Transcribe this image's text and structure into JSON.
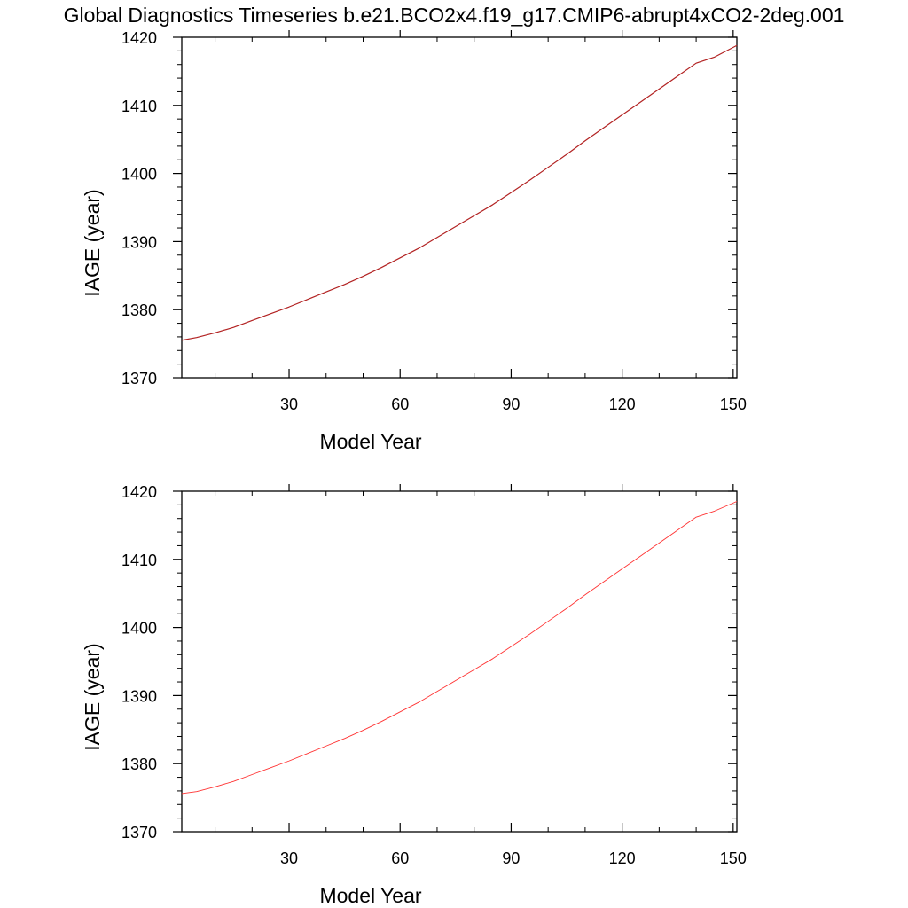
{
  "page": {
    "title": "Global Diagnostics Timeseries b.e21.BCO2x4.f19_g17.CMIP6-abrupt4xCO2-2deg.001"
  },
  "colors": {
    "top_line": "#b22222",
    "bottom_line": "#ff3333",
    "axis": "#000000"
  },
  "chart_data": [
    {
      "type": "line",
      "xlabel": "Model Year",
      "ylabel": "IAGE (year)",
      "xlim": [
        1,
        151
      ],
      "ylim": [
        1370,
        1420
      ],
      "xticks": [
        30,
        60,
        90,
        120,
        150
      ],
      "yticks": [
        1370,
        1380,
        1390,
        1400,
        1410,
        1420
      ],
      "grid": false,
      "series": [
        {
          "x": [
            1,
            5,
            10,
            15,
            20,
            25,
            30,
            35,
            40,
            45,
            50,
            55,
            60,
            65,
            70,
            75,
            80,
            85,
            90,
            95,
            100,
            105,
            110,
            115,
            120,
            125,
            130,
            135,
            140,
            145,
            151
          ],
          "values": [
            1375.5,
            1375.9,
            1376.6,
            1377.4,
            1378.4,
            1379.4,
            1380.4,
            1381.5,
            1382.6,
            1383.7,
            1384.9,
            1386.2,
            1387.6,
            1389.0,
            1390.6,
            1392.2,
            1393.8,
            1395.4,
            1397.2,
            1399.0,
            1400.9,
            1402.8,
            1404.8,
            1406.7,
            1408.6,
            1410.5,
            1412.4,
            1414.3,
            1416.2,
            1417.1,
            1418.8
          ]
        }
      ]
    },
    {
      "type": "line",
      "xlabel": "Model Year",
      "ylabel": "IAGE (year)",
      "xlim": [
        1,
        151
      ],
      "ylim": [
        1370,
        1420
      ],
      "xticks": [
        30,
        60,
        90,
        120,
        150
      ],
      "yticks": [
        1370,
        1380,
        1390,
        1400,
        1410,
        1420
      ],
      "grid": false,
      "series": [
        {
          "x": [
            1,
            5,
            10,
            15,
            20,
            25,
            30,
            35,
            40,
            45,
            50,
            55,
            60,
            65,
            70,
            75,
            80,
            85,
            90,
            95,
            100,
            105,
            110,
            115,
            120,
            125,
            130,
            135,
            140,
            145,
            151
          ],
          "values": [
            1375.6,
            1375.9,
            1376.6,
            1377.4,
            1378.4,
            1379.4,
            1380.4,
            1381.5,
            1382.6,
            1383.7,
            1384.9,
            1386.2,
            1387.6,
            1389.0,
            1390.6,
            1392.2,
            1393.8,
            1395.4,
            1397.2,
            1399.0,
            1400.9,
            1402.8,
            1404.8,
            1406.7,
            1408.6,
            1410.5,
            1412.4,
            1414.3,
            1416.2,
            1417.1,
            1418.5
          ]
        }
      ]
    }
  ]
}
